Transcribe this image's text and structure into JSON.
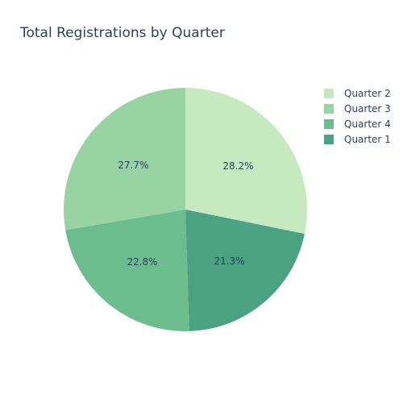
{
  "chart_data": {
    "type": "pie",
    "title": "Total Registrations by Quarter",
    "xlabel": "",
    "ylabel": "",
    "legend_position": "top-right",
    "slices": [
      {
        "label": "Quarter 2",
        "value": 28.2,
        "text": "28.2%",
        "color": "#c7e9c0"
      },
      {
        "label": "Quarter 1",
        "value": 21.3,
        "text": "21.3%",
        "color": "#4ba283"
      },
      {
        "label": "Quarter 4",
        "value": 22.8,
        "text": "22.8%",
        "color": "#6cbd8d"
      },
      {
        "label": "Quarter 3",
        "value": 27.7,
        "text": "27.7%",
        "color": "#98d3a3"
      }
    ],
    "legend": [
      {
        "label": "Quarter 2",
        "color": "#c7e9c0"
      },
      {
        "label": "Quarter 3",
        "color": "#98d3a3"
      },
      {
        "label": "Quarter 4",
        "color": "#6cbd8d"
      },
      {
        "label": "Quarter 1",
        "color": "#4ba283"
      }
    ]
  }
}
